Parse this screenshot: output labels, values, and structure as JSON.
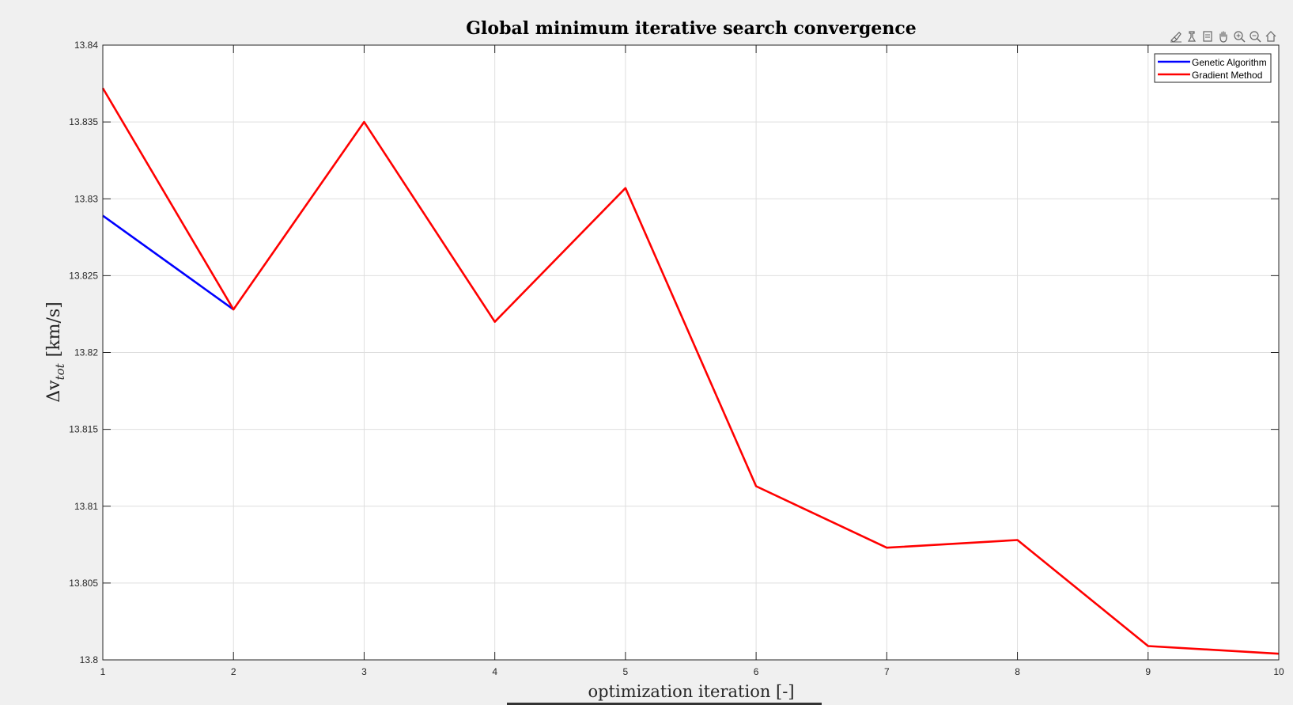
{
  "chart_data": {
    "type": "line",
    "title": "Global minimum iterative search convergence",
    "xlabel": "optimization iteration [-]",
    "ylabel_main": "Δv",
    "ylabel_sub": "tot",
    "ylabel_unit": "[km/s]",
    "xlim": [
      1,
      10
    ],
    "ylim": [
      13.8,
      13.84
    ],
    "xticks": [
      "1",
      "2",
      "3",
      "4",
      "5",
      "6",
      "7",
      "8",
      "9",
      "10"
    ],
    "xtick_values": [
      1,
      2,
      3,
      4,
      5,
      6,
      7,
      8,
      9,
      10
    ],
    "yticks": [
      "13.8",
      "13.805",
      "13.81",
      "13.815",
      "13.82",
      "13.825",
      "13.83",
      "13.835",
      "13.84"
    ],
    "ytick_values": [
      13.8,
      13.805,
      13.81,
      13.815,
      13.82,
      13.825,
      13.83,
      13.835,
      13.84
    ],
    "grid": true,
    "legend_position": "top-right",
    "series": [
      {
        "name": "Genetic Algorithm",
        "color": "#0000ff",
        "x": [
          1,
          2
        ],
        "y": [
          13.8289,
          13.8228
        ]
      },
      {
        "name": "Gradient Method",
        "color": "#ff0000",
        "x": [
          1,
          2,
          3,
          4,
          5,
          6,
          7,
          8,
          9,
          10
        ],
        "y": [
          13.8372,
          13.8228,
          13.835,
          13.822,
          13.8307,
          13.8113,
          13.8073,
          13.8078,
          13.8009,
          13.8004
        ]
      }
    ]
  },
  "toolbar": {
    "icons": [
      "brush-icon",
      "data-tips-icon",
      "restore-icon",
      "pan-icon",
      "zoom-in-icon",
      "zoom-out-icon",
      "home-icon"
    ]
  }
}
